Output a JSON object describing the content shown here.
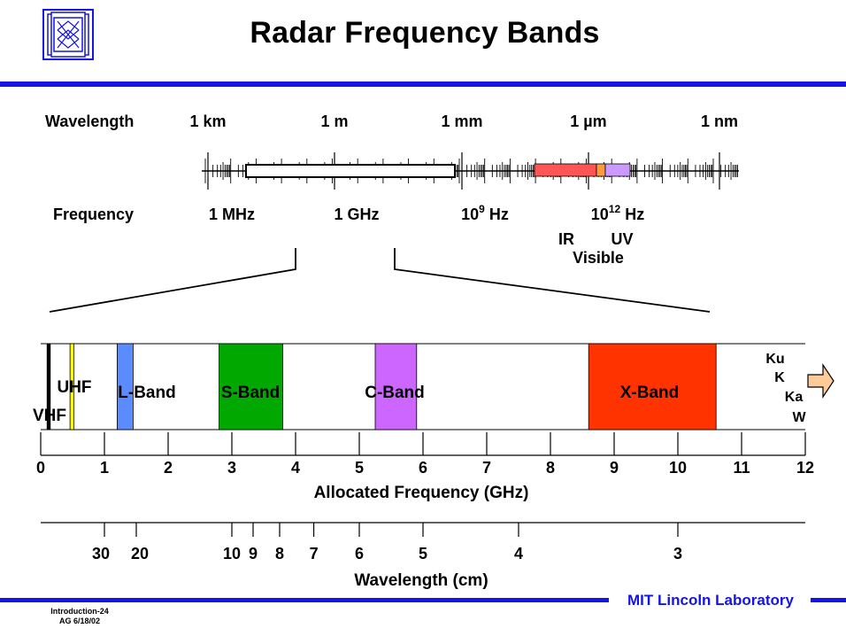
{
  "title": "Radar Frequency Bands",
  "footer": {
    "brand": "MIT Lincoln Laboratory",
    "code": "Introduction-24",
    "author_date": "AG 6/18/02"
  },
  "spectrum": {
    "wavelength_label": "Wavelength",
    "frequency_label": "Frequency",
    "wavelength_ticks": [
      "1 km",
      "1 m",
      "1 mm",
      "1 µm",
      "1 nm"
    ],
    "frequency_ticks": [
      {
        "base": "1 MHz",
        "exp": "",
        "unit": ""
      },
      {
        "base": "1 GHz",
        "exp": "",
        "unit": ""
      },
      {
        "base": "10",
        "exp": "9",
        "unit": " Hz"
      },
      {
        "base": "10",
        "exp": "12",
        "unit": " Hz"
      }
    ],
    "ir_label": "IR",
    "uv_label": "UV",
    "visible_label": "Visible"
  },
  "bands": [
    {
      "name": "VHF",
      "from_ghz": 0.1,
      "to_ghz": 0.15,
      "color": "#000000"
    },
    {
      "name": "UHF",
      "from_ghz": 0.46,
      "to_ghz": 0.52,
      "color": "#ffff00"
    },
    {
      "name": "L-Band",
      "from_ghz": 1.2,
      "to_ghz": 1.45,
      "color": "#5b8cff"
    },
    {
      "name": "S-Band",
      "from_ghz": 2.8,
      "to_ghz": 3.8,
      "color": "#00a800"
    },
    {
      "name": "C-Band",
      "from_ghz": 5.25,
      "to_ghz": 5.9,
      "color": "#cc66ff"
    },
    {
      "name": "X-Band",
      "from_ghz": 8.6,
      "to_ghz": 10.6,
      "color": "#ff3300"
    }
  ],
  "higher_bands": [
    "Ku",
    "K",
    "Ka",
    "W"
  ],
  "frequency_axis": {
    "label": "Allocated Frequency (GHz)",
    "min": 0,
    "max": 12,
    "ticks": [
      "0",
      "1",
      "2",
      "3",
      "4",
      "5",
      "6",
      "7",
      "8",
      "9",
      "10",
      "11",
      "12"
    ]
  },
  "wavelength_axis": {
    "label": "Wavelength (cm)",
    "ticks": [
      {
        "cm": 30,
        "label": "30"
      },
      {
        "cm": 20,
        "label": "20"
      },
      {
        "cm": 10,
        "label": "10"
      },
      {
        "cm": 9,
        "label": "9"
      },
      {
        "cm": 8,
        "label": "8"
      },
      {
        "cm": 7,
        "label": "7"
      },
      {
        "cm": 6,
        "label": "6"
      },
      {
        "cm": 5,
        "label": "5"
      },
      {
        "cm": 4,
        "label": "4"
      },
      {
        "cm": 3,
        "label": "3"
      }
    ]
  }
}
